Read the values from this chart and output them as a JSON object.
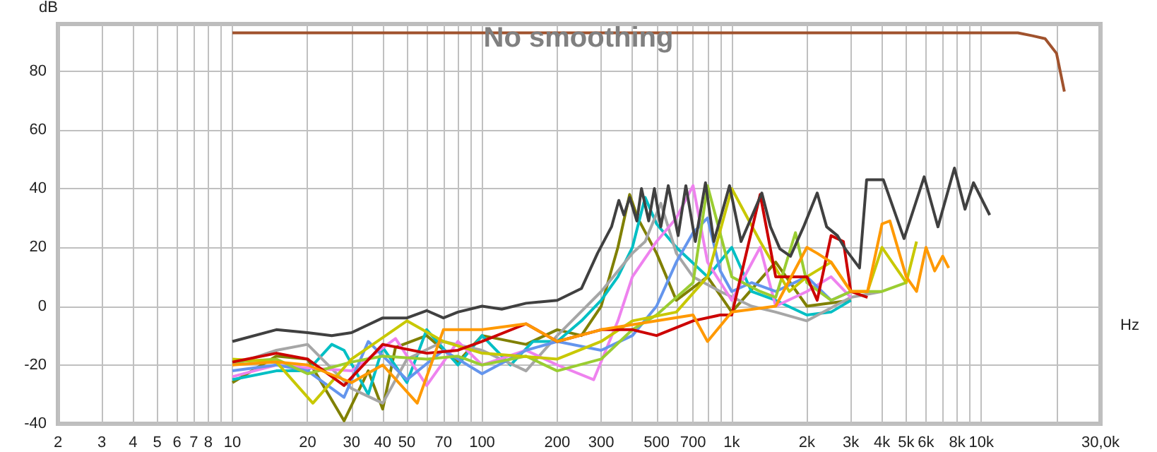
{
  "chart_data": {
    "type": "line",
    "title": "No smoothing",
    "ylabel": "dB",
    "xlabel": "Hz",
    "log": "x",
    "grid": true,
    "marker": "none",
    "xlim": [
      2,
      30000
    ],
    "ylim": [
      -40,
      96
    ],
    "xticks": [
      2,
      3,
      4,
      5,
      6,
      7,
      8,
      {
        "value": 9,
        "label": null
      },
      10,
      20,
      30,
      40,
      50,
      {
        "value": 60,
        "label": null
      },
      70,
      {
        "value": 80,
        "label": null
      },
      {
        "value": 90,
        "label": null
      },
      100,
      200,
      300,
      {
        "value": 400,
        "label": null
      },
      500,
      {
        "value": 600,
        "label": null
      },
      700,
      {
        "value": 800,
        "label": null
      },
      {
        "value": 900,
        "label": null
      },
      {
        "value": 1000,
        "label": "1k"
      },
      {
        "value": 2000,
        "label": "2k"
      },
      {
        "value": 3000,
        "label": "3k"
      },
      {
        "value": 4000,
        "label": "4k"
      },
      {
        "value": 5000,
        "label": "5k"
      },
      {
        "value": 6000,
        "label": "6k"
      },
      {
        "value": 7000,
        "label": null
      },
      {
        "value": 8000,
        "label": "8k"
      },
      {
        "value": 9000,
        "label": null
      },
      {
        "value": 10000,
        "label": "10k"
      },
      {
        "value": 20000,
        "label": null
      },
      {
        "value": 30000,
        "label": "30,0k"
      }
    ],
    "yticks": [
      -40,
      -20,
      0,
      20,
      40,
      60,
      80
    ],
    "series": [
      {
        "color": "#808000",
        "x": [
          10,
          15,
          20,
          28,
          35,
          40,
          45,
          60,
          80,
          100,
          150,
          200,
          250,
          300,
          350,
          390,
          420,
          500,
          600,
          800,
          1000,
          1500,
          2000,
          3000
        ],
        "values": [
          -26,
          -17,
          -18,
          -39,
          -22,
          -35,
          -14,
          -10,
          -19,
          -10,
          -13,
          -8,
          -10,
          0,
          20,
          38,
          30,
          18,
          2,
          10,
          -2,
          15,
          0,
          2
        ]
      },
      {
        "color": "#00bfc4",
        "x": [
          10,
          15,
          20,
          25,
          28,
          35,
          40,
          50,
          60,
          80,
          100,
          130,
          160,
          200,
          250,
          300,
          350,
          400,
          450,
          500,
          600,
          800,
          1000,
          1200,
          1500,
          2000,
          2500,
          3000
        ],
        "values": [
          -25,
          -22,
          -22,
          -13,
          -15,
          -30,
          -14,
          -26,
          -8,
          -20,
          -10,
          -20,
          -12,
          -12,
          -5,
          2,
          10,
          20,
          37,
          28,
          20,
          10,
          20,
          5,
          2,
          -3,
          -2,
          2
        ]
      },
      {
        "color": "#a6a6a6",
        "x": [
          10,
          15,
          20,
          30,
          40,
          50,
          70,
          100,
          150,
          200,
          300,
          400,
          450,
          520,
          600,
          700,
          900,
          1200,
          1500,
          2000,
          3000,
          4000
        ],
        "values": [
          -20,
          -15,
          -13,
          -28,
          -33,
          -18,
          -12,
          -15,
          -22,
          -10,
          5,
          18,
          22,
          35,
          18,
          10,
          5,
          0,
          -2,
          -5,
          3,
          5
        ]
      },
      {
        "color": "#ee82ee",
        "x": [
          10,
          15,
          20,
          30,
          45,
          60,
          80,
          100,
          150,
          200,
          280,
          350,
          400,
          500,
          600,
          700,
          800,
          1000,
          1300,
          1500,
          2000,
          2500,
          3000
        ],
        "values": [
          -24,
          -20,
          -21,
          -22,
          -11,
          -27,
          -12,
          -20,
          -15,
          -20,
          -25,
          -5,
          10,
          22,
          30,
          41,
          15,
          2,
          20,
          0,
          5,
          10,
          3
        ]
      },
      {
        "color": "#6495ed",
        "x": [
          10,
          15,
          20,
          28,
          35,
          50,
          70,
          100,
          150,
          200,
          300,
          400,
          500,
          600,
          700,
          800,
          900,
          1000,
          1200,
          1500,
          2000,
          2500,
          3000
        ],
        "values": [
          -22,
          -20,
          -22,
          -31,
          -12,
          -25,
          -15,
          -23,
          -15,
          -12,
          -15,
          -10,
          0,
          15,
          25,
          30,
          12,
          5,
          8,
          5,
          10,
          2,
          5
        ]
      },
      {
        "color": "#9acd32",
        "x": [
          10,
          15,
          20,
          30,
          40,
          60,
          80,
          100,
          150,
          200,
          300,
          400,
          500,
          700,
          800,
          1000,
          1300,
          1500,
          1800,
          2000,
          2500,
          3000,
          4000,
          5000
        ],
        "values": [
          -19,
          -18,
          -23,
          -19,
          -17,
          -18,
          -17,
          -20,
          -17,
          -22,
          -18,
          -8,
          -3,
          8,
          41,
          10,
          5,
          3,
          25,
          8,
          2,
          5,
          5,
          8
        ]
      },
      {
        "color": "#c8c800",
        "x": [
          10,
          15,
          21,
          30,
          50,
          70,
          100,
          200,
          300,
          400,
          600,
          800,
          1000,
          1300,
          1700,
          2000,
          2500,
          3000,
          3500,
          4000,
          5000,
          5500
        ],
        "values": [
          -18,
          -19,
          -33,
          -18,
          -5,
          -12,
          -16,
          -18,
          -12,
          -5,
          -2,
          10,
          40,
          22,
          5,
          10,
          15,
          5,
          5,
          20,
          8,
          22
        ]
      },
      {
        "color": "#cc0000",
        "x": [
          10,
          15,
          20,
          28,
          40,
          60,
          80,
          100,
          150,
          200,
          300,
          400,
          500,
          700,
          900,
          1000,
          1300,
          1500,
          2000,
          2200,
          2500,
          2800,
          3000,
          3500
        ],
        "values": [
          -19,
          -16,
          -18,
          -27,
          -13,
          -16,
          -15,
          -12,
          -6,
          -12,
          -8,
          -8,
          -10,
          -5,
          -3,
          -3,
          38,
          10,
          10,
          2,
          24,
          22,
          5,
          3
        ]
      },
      {
        "color": "#ff9900",
        "x": [
          10,
          15,
          20,
          30,
          40,
          55,
          70,
          100,
          150,
          200,
          300,
          500,
          700,
          800,
          1000,
          1500,
          2000,
          2200,
          2500,
          3000,
          3500,
          4000,
          4300,
          5000,
          5500,
          6000,
          6500,
          7000,
          7400
        ],
        "values": [
          -20,
          -19,
          -20,
          -26,
          -20,
          -33,
          -8,
          -8,
          -6,
          -12,
          -8,
          -5,
          -3,
          -12,
          -2,
          0,
          20,
          18,
          15,
          5,
          5,
          28,
          29,
          10,
          5,
          20,
          12,
          17,
          13
        ]
      },
      {
        "color": "#404040",
        "x": [
          10,
          15,
          20,
          25,
          30,
          40,
          50,
          60,
          70,
          80,
          100,
          120,
          150,
          200,
          250,
          290,
          330,
          353,
          370,
          390,
          417,
          435,
          465,
          490,
          520,
          557,
          610,
          655,
          715,
          785,
          848,
          980,
          1090,
          1320,
          1430,
          1560,
          1720,
          1940,
          2200,
          2400,
          2650,
          2850,
          3250,
          3470,
          4050,
          4900,
          5900,
          6700,
          7800,
          8600,
          9300,
          10800
        ],
        "values": [
          -12,
          -8,
          -9,
          -10,
          -9,
          -4,
          -4,
          -1.5,
          -4,
          -2,
          0,
          -1,
          1,
          2,
          6,
          18,
          27,
          36,
          31,
          37,
          29,
          40,
          29,
          40,
          27,
          41,
          24,
          41,
          22,
          42,
          22,
          41,
          22,
          38.5,
          27,
          19.5,
          17,
          27,
          38.5,
          27,
          24,
          19.5,
          13,
          43,
          43,
          23,
          44,
          27,
          47,
          33,
          42,
          31
        ]
      },
      {
        "color": "#a0522d",
        "x": [
          10,
          100,
          1000,
          10000,
          14000,
          16000,
          18000,
          20000,
          21500
        ],
        "values": [
          93,
          93,
          93,
          93,
          93,
          92,
          91,
          86,
          73
        ]
      }
    ]
  }
}
